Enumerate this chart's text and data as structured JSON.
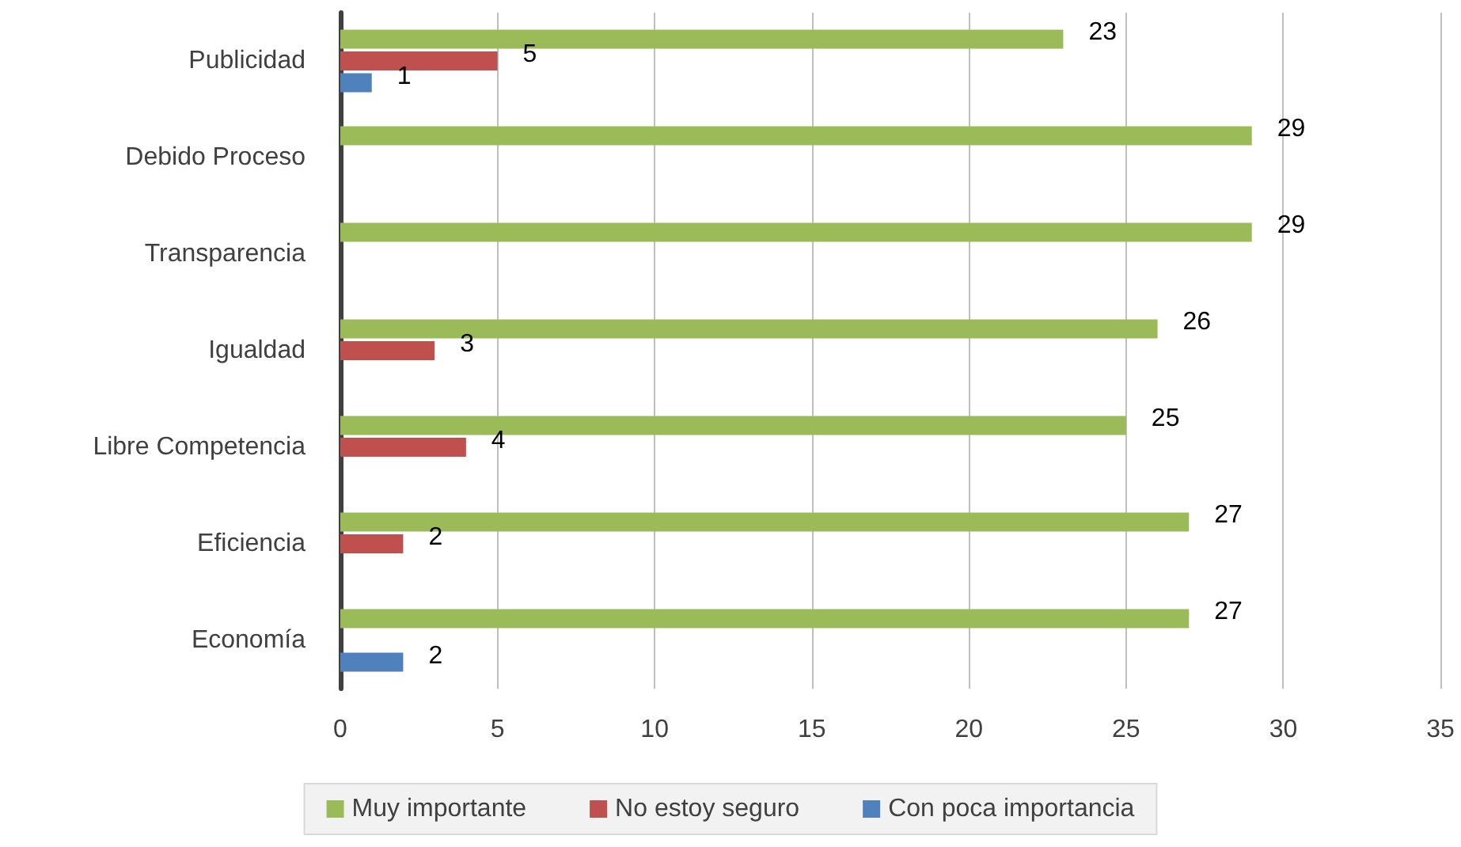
{
  "chart_data": {
    "type": "bar",
    "orientation": "horizontal",
    "categories": [
      "Publicidad",
      "Debido Proceso",
      "Transparencia",
      "Igualdad",
      "Libre Competencia",
      "Eficiencia",
      "Economía"
    ],
    "series": [
      {
        "name": "Muy importante",
        "color": "#9bbb59",
        "values": [
          23,
          29,
          29,
          26,
          25,
          27,
          27
        ]
      },
      {
        "name": "No estoy seguro",
        "color": "#c0504d",
        "values": [
          5,
          null,
          null,
          3,
          4,
          2,
          null
        ]
      },
      {
        "name": "Con poca importancia",
        "color": "#4f81bd",
        "values": [
          1,
          null,
          null,
          null,
          null,
          null,
          2
        ]
      }
    ],
    "xlim": [
      0,
      35
    ],
    "xticks": [
      0,
      5,
      10,
      15,
      20,
      25,
      30,
      35
    ],
    "grid": "x",
    "legend": "bottom",
    "data_labels": true
  }
}
